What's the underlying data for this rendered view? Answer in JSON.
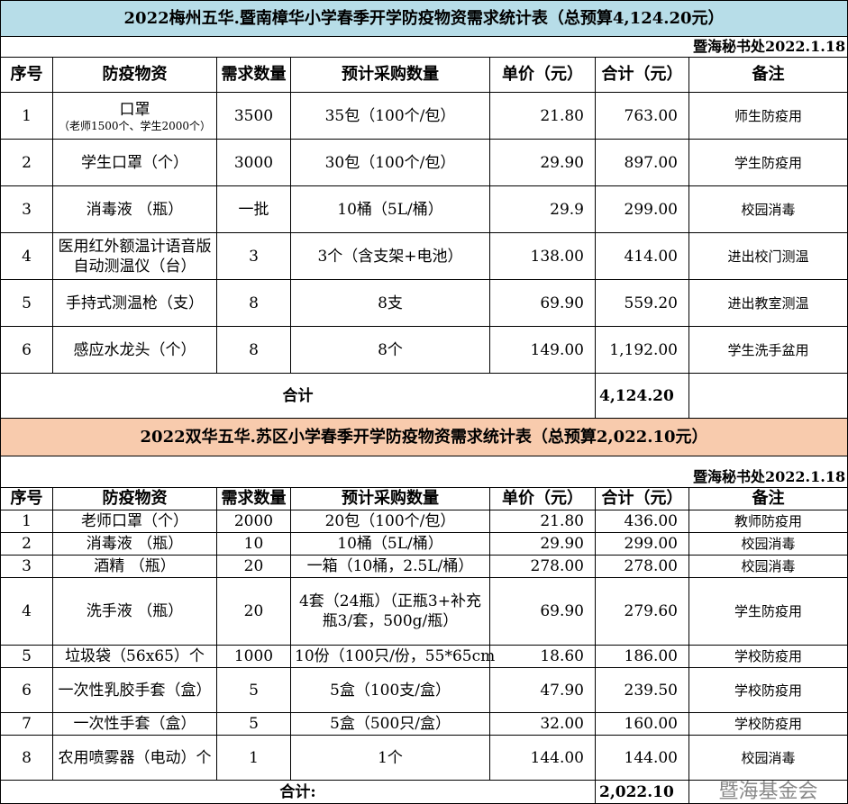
{
  "table1": {
    "title": "2022梅州五华.暨南樟华小学春季开学防疫物资需求统计表（总预算4,124.20元）",
    "date": "暨海秘书处2022.1.18",
    "headers": [
      "序号",
      "防疫物资",
      "需求数量",
      "预计采购数量",
      "单价（元）",
      "合计（元）",
      "备注"
    ],
    "rows": [
      {
        "no": "1",
        "item": "口罩",
        "sub": "（老师1500个、学生2000个）",
        "qty": "3500",
        "purchase": "35包（100个/包）",
        "price": "21.80",
        "total": "763.00",
        "note": "师生防疫用"
      },
      {
        "no": "2",
        "item": "学生口罩（个）",
        "qty": "3000",
        "purchase": "30包（100个/包）",
        "price": "29.90",
        "total": "897.00",
        "note": "学生防疫用"
      },
      {
        "no": "3",
        "item": "消毒液 （瓶）",
        "qty": "一批",
        "purchase": "10桶（5L/桶）",
        "price": "29.9",
        "total": "299.00",
        "note": "校园消毒"
      },
      {
        "no": "4",
        "item": "医用红外额温计语音版自动测温仪（台）",
        "qty": "3",
        "purchase": "3个（含支架+电池）",
        "price": "138.00",
        "total": "414.00",
        "note": "进出校门测温"
      },
      {
        "no": "5",
        "item": "手持式测温枪（支）",
        "qty": "8",
        "purchase": "8支",
        "price": "69.90",
        "total": "559.20",
        "note": "进出教室测温"
      },
      {
        "no": "6",
        "item": "感应水龙头（个）",
        "qty": "8",
        "purchase": "8个",
        "price": "149.00",
        "total": "1,192.00",
        "note": "学生洗手盆用"
      }
    ],
    "total_label": "合计",
    "total_value": "4,124.20"
  },
  "table2": {
    "title": "2022双华五华.苏区小学春季开学防疫物资需求统计表（总预算2,022.10元）",
    "date": "暨海秘书处2022.1.18",
    "headers": [
      "序号",
      "防疫物资",
      "需求数量",
      "预计采购数量",
      "单价（元）",
      "合计（元）",
      "备注"
    ],
    "rows": [
      {
        "no": "1",
        "item": "老师口罩（个）",
        "qty": "2000",
        "purchase": "20包（100个/包）",
        "price": "21.80",
        "total": "436.00",
        "note": "教师防疫用"
      },
      {
        "no": "2",
        "item": "消毒液 （瓶）",
        "qty": "10",
        "purchase": "10桶（5L/桶）",
        "price": "29.90",
        "total": "299.00",
        "note": "校园消毒"
      },
      {
        "no": "3",
        "item": "酒精 （瓶）",
        "qty": "20",
        "purchase": "一箱（10桶，2.5L/桶）",
        "price": "278.00",
        "total": "278.00",
        "note": "校园消毒"
      },
      {
        "no": "4",
        "item": "洗手液 （瓶）",
        "qty": "20",
        "purchase": "4套（24瓶）（正瓶3+补充瓶3/套，500g/瓶）",
        "price": "69.90",
        "total": "279.60",
        "note": "学生防疫用"
      },
      {
        "no": "5",
        "item": "垃圾袋（56x65）个",
        "qty": "1000",
        "purchase": "10份（100只/份，55*65cm",
        "price": "18.60",
        "total": "186.00",
        "note": "学校防疫用"
      },
      {
        "no": "6",
        "item": "一次性乳胶手套（盒）",
        "qty": "5",
        "purchase": "5盒（100支/盒）",
        "price": "47.90",
        "total": "239.50",
        "note": "学校防疫用"
      },
      {
        "no": "7",
        "item": "一次性手套（盒）",
        "qty": "5",
        "purchase": "5盒（500只/盒）",
        "price": "32.00",
        "total": "160.00",
        "note": "学校防疫用"
      },
      {
        "no": "8",
        "item": "农用喷雾器（电动）个",
        "qty": "1",
        "purchase": "1个",
        "price": "144.00",
        "total": "144.00",
        "note": "校园消毒"
      }
    ],
    "total_label": "合计:",
    "total_value": "2,022.10"
  },
  "watermark": "暨海基金会",
  "colors": {
    "title1_bg": "#b7dde8",
    "title2_bg": "#f8cbad"
  }
}
